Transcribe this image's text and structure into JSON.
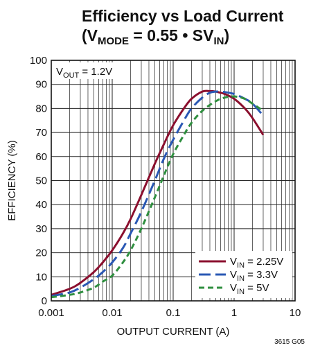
{
  "chart_data": {
    "type": "line",
    "title": {
      "line1": "Efficiency vs Load Current",
      "line2": {
        "open": "(V",
        "sub1": "MODE",
        "mid": " = 0.55 • SV",
        "sub2": "IN",
        "close": ")"
      }
    },
    "xlabel": "OUTPUT CURRENT (A)",
    "ylabel": "EFFICIENCY (%)",
    "x_scale": "log",
    "xlim": [
      0.001,
      10
    ],
    "ylim": [
      0,
      100
    ],
    "x_ticks": [
      {
        "value": 0.001,
        "label": "0.001"
      },
      {
        "value": 0.01,
        "label": "0.01"
      },
      {
        "value": 0.1,
        "label": "0.1"
      },
      {
        "value": 1,
        "label": "1"
      },
      {
        "value": 10,
        "label": "10"
      }
    ],
    "y_ticks": [
      {
        "value": 0,
        "label": "0"
      },
      {
        "value": 10,
        "label": "10"
      },
      {
        "value": 20,
        "label": "20"
      },
      {
        "value": 30,
        "label": "30"
      },
      {
        "value": 40,
        "label": "40"
      },
      {
        "value": 50,
        "label": "50"
      },
      {
        "value": 60,
        "label": "60"
      },
      {
        "value": 70,
        "label": "70"
      },
      {
        "value": 80,
        "label": "80"
      },
      {
        "value": 90,
        "label": "90"
      },
      {
        "value": 100,
        "label": "100"
      }
    ],
    "grid": true,
    "annotation": {
      "main": "V",
      "sub": "OUT",
      "rest": " = 1.2V"
    },
    "legend_placement": "bottom-right",
    "figure_code": "3615 G05",
    "series": [
      {
        "legend": {
          "main": "V",
          "sub": "IN",
          "rest": " = 2.25V"
        },
        "color": "#8b0f2e",
        "dash": "solid",
        "x": [
          0.001,
          0.002,
          0.003,
          0.005,
          0.007,
          0.01,
          0.015,
          0.02,
          0.03,
          0.05,
          0.07,
          0.1,
          0.15,
          0.2,
          0.3,
          0.4,
          0.5,
          0.6,
          0.7,
          1,
          1.5,
          2,
          3
        ],
        "y": [
          2.5,
          5,
          7.5,
          12,
          16,
          21,
          28,
          34,
          44,
          57,
          65,
          73,
          80,
          84,
          87,
          87.2,
          87,
          86.5,
          86,
          84,
          80,
          76,
          69
        ]
      },
      {
        "legend": {
          "main": "V",
          "sub": "IN",
          "rest": " = 3.3V"
        },
        "color": "#2a58b4",
        "dash": "long-dash",
        "x": [
          0.001,
          0.002,
          0.003,
          0.005,
          0.007,
          0.01,
          0.015,
          0.02,
          0.03,
          0.05,
          0.07,
          0.1,
          0.15,
          0.2,
          0.3,
          0.4,
          0.5,
          0.7,
          1,
          1.5,
          2,
          3
        ],
        "y": [
          2,
          3.5,
          5.5,
          9,
          12,
          16,
          22,
          28,
          37,
          50,
          59,
          67,
          75,
          80,
          84.5,
          86.5,
          87,
          86.8,
          86,
          84,
          82,
          77
        ]
      },
      {
        "legend": {
          "main": "V",
          "sub": "IN",
          "rest": " = 5V"
        },
        "color": "#2f8f3f",
        "dash": "short-dash",
        "x": [
          0.001,
          0.002,
          0.003,
          0.005,
          0.007,
          0.01,
          0.015,
          0.02,
          0.03,
          0.05,
          0.07,
          0.1,
          0.15,
          0.2,
          0.3,
          0.5,
          0.7,
          1,
          1.5,
          2,
          3
        ],
        "y": [
          1.5,
          2.5,
          3.5,
          5.5,
          8,
          10.5,
          16,
          21,
          30,
          43,
          52,
          61,
          69,
          74,
          79,
          83,
          84.5,
          85,
          84,
          82,
          79
        ]
      }
    ]
  }
}
